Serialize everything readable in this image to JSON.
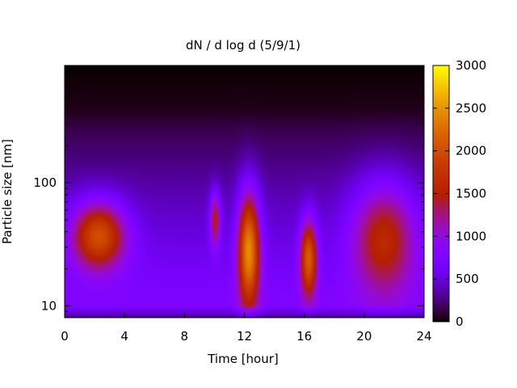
{
  "chart_data": {
    "type": "heatmap",
    "title": "dN / d log d (5/9/1)",
    "xlabel": "Time [hour]",
    "ylabel": "Particle size [nm]",
    "xlim": [
      0,
      24
    ],
    "ylim": [
      8,
      900
    ],
    "yscale": "log",
    "x_ticks": [
      0,
      4,
      8,
      12,
      16,
      20,
      24
    ],
    "x_tick_labels": [
      "0",
      "4",
      "8",
      "12",
      "16",
      "20",
      "24"
    ],
    "y_ticks": [
      10,
      100
    ],
    "y_tick_labels": [
      "10",
      "100"
    ],
    "colorbar": {
      "range": [
        0,
        3000
      ],
      "ticks": [
        0,
        500,
        1000,
        1500,
        2000,
        2500,
        3000
      ],
      "tick_labels": [
        "0",
        "500",
        "1000",
        "1500",
        "2000",
        "2500",
        "3000"
      ],
      "colormap": "gnuplot-pm3d (black-purple-red-orange-yellow)"
    },
    "grid": false,
    "features": [
      {
        "time_hour": [
          0,
          4.5
        ],
        "size_nm": [
          20,
          95
        ],
        "peak": 2200
      },
      {
        "time_hour": [
          9.6,
          10.5
        ],
        "size_nm": [
          30,
          110
        ],
        "peak": 1700
      },
      {
        "time_hour": [
          11.4,
          13.2
        ],
        "size_nm": [
          10,
          140
        ],
        "peak": 2600
      },
      {
        "time_hour": [
          15.6,
          17.0
        ],
        "size_nm": [
          12,
          70
        ],
        "peak": 2250
      },
      {
        "time_hour": [
          18.7,
          24
        ],
        "size_nm": [
          13,
          170
        ],
        "peak": 1800
      }
    ]
  }
}
